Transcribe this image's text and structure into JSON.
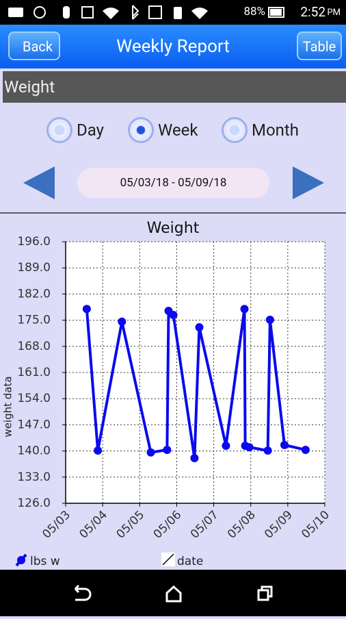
{
  "status_bar": {
    "battery": "88%",
    "time": "2:52",
    "ampm": "PM"
  },
  "header": {
    "back": "Back",
    "title": "Weekly Report",
    "table": "Table"
  },
  "section": "Weight",
  "periods": [
    "Day",
    "Week",
    "Month"
  ],
  "date_range": "05/03/18 - 05/09/18",
  "chart_data": {
    "type": "line",
    "title": "Weight",
    "ylabel": "weight data",
    "xlabel": "date",
    "x": [
      3.57,
      3.87,
      4.52,
      5.3,
      5.74,
      5.78,
      5.91,
      6.48,
      6.61,
      7.33,
      7.83,
      7.85,
      7.96,
      8.46,
      8.52,
      8.91,
      9.48
    ],
    "series": [
      {
        "name": "lbs w",
        "color": "#0a0aee",
        "values": [
          178.0,
          140.1,
          174.6,
          139.6,
          140.3,
          177.5,
          176.4,
          138.1,
          173.1,
          141.4,
          178.0,
          141.4,
          141.0,
          140.1,
          175.1,
          141.6,
          140.3
        ]
      }
    ],
    "xlim": [
      3,
      10
    ],
    "xticks": [
      {
        "value": 3,
        "label": "05/03"
      },
      {
        "value": 4,
        "label": "05/04"
      },
      {
        "value": 5,
        "label": "05/05"
      },
      {
        "value": 6,
        "label": "05/06"
      },
      {
        "value": 7,
        "label": "05/07"
      },
      {
        "value": 8,
        "label": "05/08"
      },
      {
        "value": 9,
        "label": "05/09"
      },
      {
        "value": 10,
        "label": "05/10"
      }
    ],
    "ylim": [
      126,
      196
    ],
    "yticks": [
      {
        "value": 126,
        "label": "126.0"
      },
      {
        "value": 133,
        "label": "133.0"
      },
      {
        "value": 140,
        "label": "140.0"
      },
      {
        "value": 147,
        "label": "147.0"
      },
      {
        "value": 154,
        "label": "154.0"
      },
      {
        "value": 161,
        "label": "161.0"
      },
      {
        "value": 168,
        "label": "168.0"
      },
      {
        "value": 175,
        "label": "175.0"
      },
      {
        "value": 182,
        "label": "182.0"
      },
      {
        "value": 189,
        "label": "189.0"
      },
      {
        "value": 196,
        "label": "196.0"
      }
    ],
    "grid": true
  }
}
